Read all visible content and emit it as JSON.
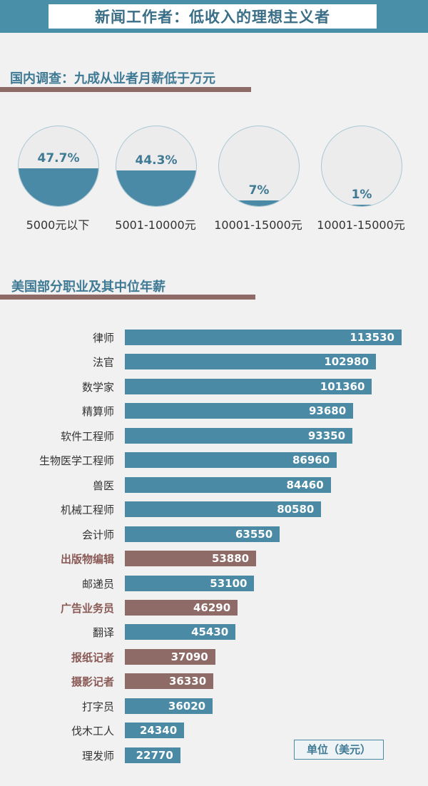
{
  "title": "新闻工作者：低收入的理想主义者",
  "domestic": {
    "title": "国内调查：九成从业者月薪低于万元",
    "pies": [
      {
        "pct": 47.7,
        "pct_label": "47.7%",
        "label": "5000元以下"
      },
      {
        "pct": 44.3,
        "pct_label": "44.3%",
        "label": "5001-10000元"
      },
      {
        "pct": 7,
        "pct_label": "7%",
        "label": "10001-15000元"
      },
      {
        "pct": 1,
        "pct_label": "1%",
        "label": "10001-15000元"
      }
    ]
  },
  "chart_data": {
    "type": "bar",
    "orientation": "horizontal",
    "title": "美国部分职业及其中位年薪",
    "unit_label": "单位（美元）",
    "categories": [
      "律师",
      "法官",
      "数学家",
      "精算师",
      "软件工程师",
      "生物医学工程师",
      "兽医",
      "机械工程师",
      "会计师",
      "出版物编辑",
      "邮递员",
      "广告业务员",
      "翻译",
      "报纸记者",
      "摄影记者",
      "打字员",
      "伐木工人",
      "理发师"
    ],
    "values": [
      113530,
      102980,
      101360,
      93680,
      93350,
      86960,
      84460,
      80580,
      63550,
      53880,
      53100,
      46290,
      45430,
      37090,
      36330,
      36020,
      24340,
      22770
    ],
    "highlighted": [
      "出版物编辑",
      "广告业务员",
      "报纸记者",
      "摄影记者"
    ],
    "colors": {
      "bar": "#4a8aa5",
      "highlight": "#8e6b67"
    }
  }
}
